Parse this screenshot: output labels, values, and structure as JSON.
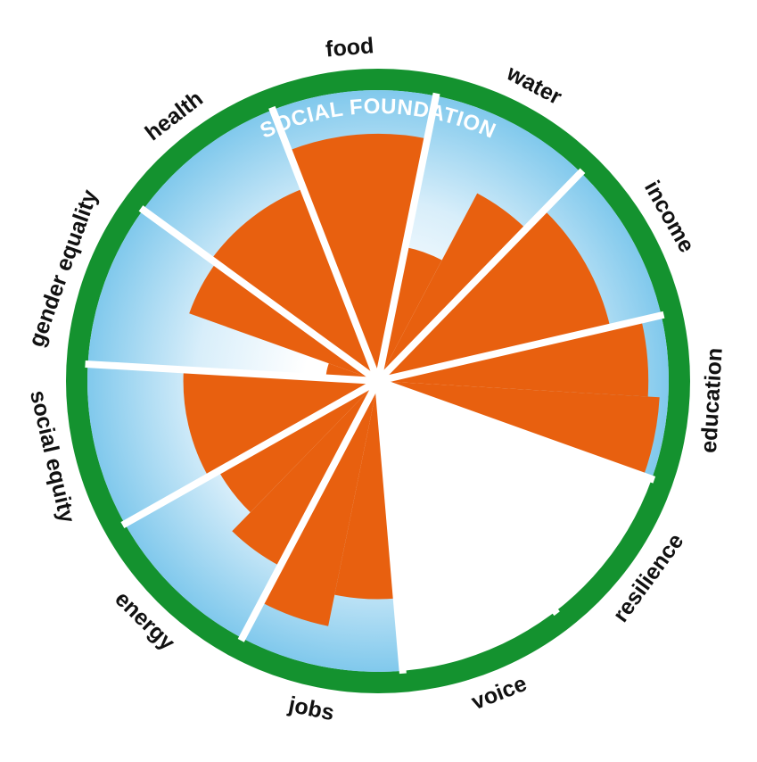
{
  "chart_data": {
    "type": "radial-bar",
    "ring_label": "SOCIAL FOUNDATION",
    "categories": [
      "water",
      "income",
      "education",
      "resilience",
      "voice",
      "jobs",
      "energy",
      "social equity",
      "gender equality",
      "health",
      "food"
    ],
    "shortfall_estimate": [
      [
        0.47,
        0.73
      ],
      [
        0.82
      ],
      [
        0.93,
        0.97
      ],
      [
        0.0
      ],
      [
        0.0
      ],
      [
        0.75,
        0.86
      ],
      [
        0.72,
        0.63
      ],
      [
        0.67
      ],
      [
        0.18,
        0.69
      ],
      [
        0.71
      ],
      [
        0.85
      ]
    ],
    "colors": {
      "ring": "#14922f",
      "shortfall": "#e8600f",
      "foundation_fill": "#8fcfef",
      "foundation_center": "#ffffff",
      "separator": "#ffffff",
      "label": "#111111"
    }
  }
}
